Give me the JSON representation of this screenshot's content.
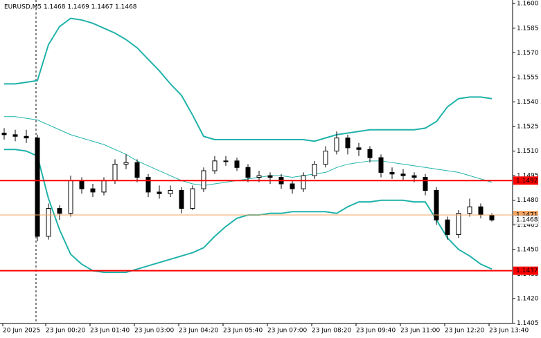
{
  "chart_data": {
    "type": "candlestick",
    "title": "EURUSD,M5  1.1468 1.1469 1.1467 1.1468",
    "open": [
      1.1521,
      1.152,
      1.1519,
      1.1518,
      1.1458,
      1.1475,
      1.1472,
      1.1492,
      1.1487,
      1.1485,
      1.1492,
      1.1502,
      1.1503,
      1.1494,
      1.1485,
      1.1484,
      1.1486,
      1.1475,
      1.1487,
      1.1498,
      1.1504,
      1.1504,
      1.15,
      1.1494,
      1.1495,
      1.1494,
      1.149,
      1.1487,
      1.1495,
      1.1502,
      1.151,
      1.1518,
      1.1512,
      1.1511,
      1.1506,
      1.1497,
      1.1496,
      1.1495,
      1.1494,
      1.1486,
      1.1468,
      1.1459,
      1.1472,
      1.1476,
      1.1471
    ],
    "high": [
      1.1524,
      1.1523,
      1.1523,
      1.152,
      1.1478,
      1.1477,
      1.1495,
      1.1494,
      1.149,
      1.1494,
      1.1505,
      1.1508,
      1.1505,
      1.1496,
      1.1489,
      1.1489,
      1.1488,
      1.1489,
      1.15,
      1.1507,
      1.1507,
      1.1506,
      1.1502,
      1.1498,
      1.1497,
      1.1496,
      1.1492,
      1.1497,
      1.1504,
      1.1513,
      1.1522,
      1.152,
      1.1515,
      1.1513,
      1.1508,
      1.15,
      1.1499,
      1.1497,
      1.1496,
      1.1488,
      1.147,
      1.1474,
      1.1481,
      1.1478,
      1.1472
    ],
    "low": [
      1.1517,
      1.1516,
      1.1515,
      1.1455,
      1.1456,
      1.1468,
      1.147,
      1.1484,
      1.1482,
      1.1483,
      1.149,
      1.1499,
      1.1491,
      1.1482,
      1.1481,
      1.1482,
      1.1472,
      1.1474,
      1.1485,
      1.1496,
      1.1501,
      1.1498,
      1.1491,
      1.1491,
      1.149,
      1.1487,
      1.1484,
      1.1485,
      1.1493,
      1.15,
      1.1508,
      1.1508,
      1.1507,
      1.1503,
      1.1494,
      1.1493,
      1.1492,
      1.1491,
      1.1483,
      1.1465,
      1.1456,
      1.1457,
      1.147,
      1.1469,
      1.1467
    ],
    "close": [
      1.152,
      1.1519,
      1.1518,
      1.1458,
      1.1475,
      1.1472,
      1.1492,
      1.1487,
      1.1485,
      1.1492,
      1.1502,
      1.1503,
      1.1494,
      1.1485,
      1.1484,
      1.1486,
      1.1475,
      1.1487,
      1.1498,
      1.1504,
      1.1504,
      1.15,
      1.1494,
      1.1495,
      1.1494,
      1.149,
      1.1487,
      1.1495,
      1.1502,
      1.151,
      1.1518,
      1.1512,
      1.1511,
      1.1506,
      1.1497,
      1.1496,
      1.1495,
      1.1494,
      1.1486,
      1.1468,
      1.1459,
      1.1472,
      1.1476,
      1.1471,
      1.1468
    ],
    "bands": [
      {
        "color": "#20b2aa",
        "values": [
          1.1551,
          1.1551,
          1.1552,
          1.1553,
          1.1575,
          1.1586,
          1.1591,
          1.159,
          1.1588,
          1.1585,
          1.1582,
          1.1578,
          1.1573,
          1.1566,
          1.1559,
          1.1551,
          1.1544,
          1.1532,
          1.1519,
          1.1517,
          1.1517,
          1.1517,
          1.1517,
          1.1517,
          1.1517,
          1.1517,
          1.1517,
          1.1517,
          1.1516,
          1.1518,
          1.152,
          1.1521,
          1.1522,
          1.1523,
          1.1523,
          1.1523,
          1.1523,
          1.1523,
          1.1524,
          1.1528,
          1.1537,
          1.1542,
          1.1543,
          1.1543,
          1.1542
        ]
      },
      {
        "color": "#20b2aa",
        "values": [
          1.1531,
          1.1531,
          1.153,
          1.1529,
          1.1526,
          1.1523,
          1.152,
          1.1518,
          1.1516,
          1.1514,
          1.1511,
          1.1508,
          1.1504,
          1.1501,
          1.1498,
          1.1495,
          1.1492,
          1.149,
          1.1489,
          1.149,
          1.1491,
          1.1492,
          1.1493,
          1.1494,
          1.1495,
          1.1495,
          1.1494,
          1.1495,
          1.1496,
          1.1497,
          1.15,
          1.1502,
          1.1503,
          1.1504,
          1.1504,
          1.1503,
          1.1502,
          1.1501,
          1.15,
          1.1499,
          1.1498,
          1.1497,
          1.1495,
          1.1493,
          1.1491
        ]
      },
      {
        "color": "#20b2aa",
        "values": [
          1.1511,
          1.1511,
          1.151,
          1.1507,
          1.1481,
          1.1462,
          1.1447,
          1.1441,
          1.1437,
          1.1436,
          1.1436,
          1.1436,
          1.1438,
          1.144,
          1.1442,
          1.1444,
          1.1446,
          1.1448,
          1.1451,
          1.1458,
          1.1464,
          1.1469,
          1.1471,
          1.1471,
          1.1472,
          1.1472,
          1.1473,
          1.1473,
          1.1473,
          1.1473,
          1.1472,
          1.1476,
          1.1479,
          1.1479,
          1.148,
          1.148,
          1.148,
          1.1479,
          1.1479,
          1.1468,
          1.1457,
          1.145,
          1.1446,
          1.1441,
          1.1438
        ]
      }
    ],
    "levels": [
      {
        "value": 1.1492,
        "color": "#ff0000"
      },
      {
        "value": 1.1437,
        "color": "#ff0000"
      },
      {
        "value": 1.1471,
        "color": "#f4a460"
      },
      {
        "value": 1.1468,
        "color": "#c0c0c0"
      }
    ],
    "ylim": [
      1.14048,
      1.16022
    ],
    "yticks": [
      {
        "value": 1.16,
        "label": "1.1600"
      },
      1.1585,
      {
        "value": 1.157,
        "label": "1.1570"
      },
      1.1555,
      {
        "value": 1.154,
        "label": "1.1540"
      },
      1.1525,
      {
        "value": 1.151,
        "label": "1.1510"
      },
      1.1495,
      {
        "value": 1.148,
        "label": "1.1480"
      },
      1.1465,
      {
        "value": 1.145,
        "label": "1.1450"
      },
      1.1435,
      {
        "value": 1.142,
        "label": "1.1420"
      },
      1.1405
    ],
    "xlim": [
      -0.375,
      45.875
    ],
    "xticks": [
      {
        "value": -0.125,
        "label": "20 Jun 2025"
      },
      {
        "value": 3.75,
        "label": "23 Jun 00:20"
      },
      {
        "value": 7.75,
        "label": "23 Jun 01:40"
      },
      {
        "value": 11.75,
        "label": "23 Jun 03:00"
      },
      {
        "value": 15.75,
        "label": "23 Jun 04:20"
      },
      {
        "value": 19.75,
        "label": "23 Jun 05:40"
      },
      {
        "value": 23.75,
        "label": "23 Jun 07:00"
      },
      {
        "value": 27.75,
        "label": "23 Jun 08:20"
      },
      {
        "value": 31.75,
        "label": "23 Jun 09:40"
      },
      {
        "value": 35.75,
        "label": "23 Jun 11:00"
      },
      {
        "value": 39.75,
        "label": "23 Jun 12:20"
      },
      {
        "value": 43.75,
        "label": "23 Jun 13:40"
      }
    ],
    "bull_color": "#ffffff",
    "bear_color": "#000000"
  }
}
